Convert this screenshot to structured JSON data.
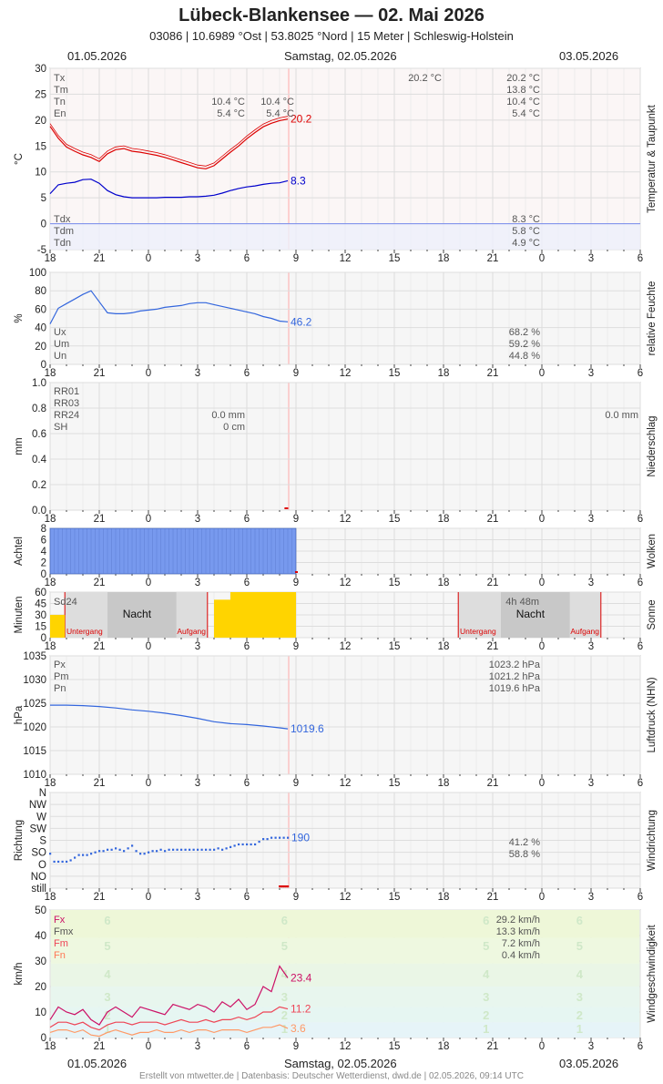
{
  "header": {
    "title": "Lübeck-Blankensee  —  02. Mai 2026",
    "subtitle": "03086  |  10.6989 °Ost  |  53.8025 °Nord  |  15 Meter  |  Schleswig-Holstein",
    "date_left": "01.05.2026",
    "date_center": "Samstag, 02.05.2026",
    "date_right": "03.05.2026"
  },
  "footer": "Erstellt von mtwetter.de | Datenbasis: Deutscher Wetterdienst, dwd.de | 02.05.2026, 09:14 UTC",
  "x_ticks": [
    "18",
    "21",
    "0",
    "3",
    "6",
    "9",
    "12",
    "15",
    "18",
    "21",
    "0",
    "3",
    "6"
  ],
  "chart_data": [
    {
      "type": "line",
      "ylabel": "°C",
      "side_label": "Temperatur & Taupunkt",
      "ylim": [
        -5,
        30
      ],
      "yticks": [
        "30",
        "25",
        "20",
        "15",
        "10",
        "5",
        "0",
        "-5"
      ],
      "x_unit": "hours since 01.05.2026 18:00",
      "stats_labels": [
        "Tx",
        "Tm",
        "Tn",
        "En"
      ],
      "stats_left_values": [
        "",
        "",
        "10.4 °C",
        "5.4 °C"
      ],
      "stats_mid_values": [
        "",
        "",
        "10.4 °C",
        "5.4 °C"
      ],
      "stats_day_values": [
        "20.2 °C"
      ],
      "stats_right_values": [
        "20.2 °C",
        "13.8 °C",
        "10.4 °C",
        "5.4 °C"
      ],
      "dew_labels": [
        "Tdx",
        "Tdm",
        "Tdn"
      ],
      "dew_values": [
        "8.3 °C",
        "5.8 °C",
        "4.9 °C"
      ],
      "series": [
        {
          "color": "#dd0000",
          "end_label": "20.2",
          "x": [
            0,
            0.5,
            1,
            1.5,
            2,
            2.5,
            3,
            3.5,
            4,
            4.5,
            5,
            5.5,
            6,
            6.5,
            7,
            7.5,
            8,
            8.5,
            9,
            9.5,
            10,
            10.5,
            11,
            11.5,
            12,
            12.5,
            13,
            13.5,
            14,
            14.5
          ],
          "y": [
            18.8,
            16.5,
            14.8,
            14.0,
            13.3,
            12.8,
            12.0,
            13.5,
            14.3,
            14.5,
            14.0,
            13.8,
            13.5,
            13.2,
            12.8,
            12.3,
            11.8,
            11.3,
            10.8,
            10.6,
            11.2,
            12.5,
            13.8,
            15.0,
            16.4,
            17.6,
            18.7,
            19.4,
            19.9,
            20.2
          ]
        },
        {
          "color": "#0000cc",
          "end_label": "8.3",
          "x": [
            0,
            0.5,
            1,
            1.5,
            2,
            2.5,
            3,
            3.5,
            4,
            4.5,
            5,
            5.5,
            6,
            6.5,
            7,
            7.5,
            8,
            8.5,
            9,
            9.5,
            10,
            10.5,
            11,
            11.5,
            12,
            12.5,
            13,
            13.5,
            14,
            14.5
          ],
          "y": [
            5.8,
            7.5,
            7.8,
            8.0,
            8.5,
            8.6,
            7.8,
            6.4,
            5.6,
            5.2,
            5.0,
            5.0,
            5.0,
            5.0,
            5.1,
            5.1,
            5.1,
            5.2,
            5.2,
            5.3,
            5.5,
            5.9,
            6.4,
            6.8,
            7.1,
            7.3,
            7.6,
            7.8,
            7.9,
            8.3
          ]
        }
      ]
    },
    {
      "type": "line",
      "ylabel": "%",
      "side_label": "relative Feuchte",
      "ylim": [
        0,
        100
      ],
      "yticks": [
        "100",
        "80",
        "60",
        "40",
        "20",
        "0"
      ],
      "stats_labels": [
        "Ux",
        "Um",
        "Un"
      ],
      "stats_right_values": [
        "68.2 %",
        "59.2 %",
        "44.8 %"
      ],
      "series": [
        {
          "color": "#3366dd",
          "end_label": "46.2",
          "x": [
            0,
            0.5,
            1,
            1.5,
            2,
            2.5,
            3,
            3.5,
            4,
            4.5,
            5,
            5.5,
            6,
            6.5,
            7,
            7.5,
            8,
            8.5,
            9,
            9.5,
            10,
            10.5,
            11,
            11.5,
            12,
            12.5,
            13,
            13.5,
            14,
            14.5
          ],
          "y": [
            44,
            61,
            66,
            71,
            76,
            80,
            68,
            56,
            55,
            55,
            56,
            58,
            59,
            60,
            62,
            63,
            64,
            66,
            67,
            67,
            65,
            63,
            61,
            59,
            57,
            55,
            52,
            50,
            47,
            46.2
          ]
        }
      ]
    },
    {
      "type": "bar",
      "ylabel": "mm",
      "side_label": "Niederschlag",
      "ylim": [
        0,
        1.0
      ],
      "yticks": [
        "1.0",
        "0.8",
        "0.6",
        "0.4",
        "0.2",
        "0.0"
      ],
      "stats_labels": [
        "RR01",
        "RR03",
        "RR24",
        "SH"
      ],
      "stats_mid_values": [
        "",
        "",
        "0.0 mm",
        "0 cm"
      ],
      "stats_right_values": [
        "",
        "",
        "0.0 mm",
        ""
      ],
      "values": []
    },
    {
      "type": "bar",
      "ylabel": "Achtel",
      "side_label": "Wolken",
      "ylim": [
        0,
        8
      ],
      "yticks": [
        "8",
        "6",
        "4",
        "2",
        "0"
      ],
      "bar_color": "#7799ee",
      "x_start": 0,
      "x_end": 15,
      "value": 8
    },
    {
      "type": "bar",
      "ylabel": "Minuten",
      "side_label": "Sonne",
      "ylim": [
        0,
        60
      ],
      "yticks": [
        "60",
        "45",
        "30",
        "15",
        "0"
      ],
      "sd_label": "Sd24",
      "sd_value": "4h 48m",
      "night_label": "Nacht",
      "sunset_label": "Untergang",
      "sunrise_label": "Aufgang",
      "bar_color": "#ffd400",
      "bars": [
        {
          "x0": 0,
          "x1": 0.9,
          "v": 30
        },
        {
          "x0": 10,
          "x1": 11,
          "v": 50
        },
        {
          "x0": 11,
          "x1": 15,
          "v": 60
        }
      ]
    },
    {
      "type": "line",
      "ylabel": "hPa",
      "side_label": "Luftdruck (NHN)",
      "ylim": [
        1010,
        1035
      ],
      "yticks": [
        "1035",
        "1030",
        "1025",
        "1020",
        "1015",
        "1010"
      ],
      "stats_labels": [
        "Px",
        "Pm",
        "Pn"
      ],
      "stats_right_values": [
        "1023.2 hPa",
        "1021.2 hPa",
        "1019.6 hPa"
      ],
      "series": [
        {
          "color": "#3366dd",
          "end_label": "1019.6",
          "x": [
            0,
            1,
            2,
            3,
            4,
            5,
            6,
            7,
            8,
            9,
            10,
            11,
            12,
            13,
            14,
            14.5
          ],
          "y": [
            1024.6,
            1024.6,
            1024.5,
            1024.3,
            1024.0,
            1023.6,
            1023.3,
            1022.9,
            1022.4,
            1021.8,
            1021.1,
            1020.7,
            1020.5,
            1020.2,
            1019.8,
            1019.6
          ]
        }
      ]
    },
    {
      "type": "scatter",
      "ylabel": "Richtung",
      "side_label": "Windrichtung",
      "yticks": [
        "N",
        "NW",
        "W",
        "SW",
        "S",
        "SO",
        "O",
        "NO",
        "still"
      ],
      "stats_right_values": [
        "41.2 %",
        "58.8 %"
      ],
      "series": [
        {
          "color": "#3366dd",
          "end_label": "190",
          "x": [
            0,
            0.25,
            0.5,
            0.75,
            1,
            1.25,
            1.5,
            1.75,
            2,
            2.25,
            2.5,
            2.75,
            3,
            3.25,
            3.5,
            3.75,
            4,
            4.25,
            4.5,
            4.75,
            5,
            5.25,
            5.5,
            5.75,
            6,
            6.25,
            6.5,
            6.75,
            7,
            7.25,
            7.5,
            7.75,
            8,
            8.25,
            8.5,
            8.75,
            9,
            9.25,
            9.5,
            9.75,
            10,
            10.25,
            10.5,
            10.75,
            11,
            11.25,
            11.5,
            11.75,
            12,
            12.25,
            12.5,
            12.75,
            13,
            13.25,
            13.5,
            13.75,
            14,
            14.25,
            14.5
          ],
          "y": [
            130,
            100,
            100,
            100,
            100,
            105,
            115,
            125,
            125,
            125,
            130,
            135,
            140,
            140,
            145,
            145,
            150,
            145,
            140,
            150,
            160,
            140,
            130,
            130,
            135,
            140,
            140,
            145,
            140,
            145,
            145,
            145,
            145,
            145,
            145,
            145,
            145,
            145,
            145,
            145,
            145,
            150,
            145,
            150,
            155,
            160,
            165,
            165,
            165,
            165,
            165,
            175,
            185,
            185,
            190,
            190,
            190,
            190,
            190
          ]
        },
        {
          "color": "#dd0000",
          "x": [
            14.0,
            14.1,
            14.2,
            14.3,
            14.4,
            14.5
          ],
          "y": [
            -1,
            -1,
            -1,
            -1,
            -1,
            -1
          ]
        }
      ]
    },
    {
      "type": "line",
      "ylabel": "km/h",
      "side_label": "Windgeschwindigkeit",
      "ylim": [
        0,
        50
      ],
      "yticks": [
        "50",
        "40",
        "30",
        "20",
        "10",
        "0"
      ],
      "stats_labels": [
        "Fx",
        "Fmx",
        "Fm",
        "Fn"
      ],
      "stats_right_values": [
        "29.2 km/h",
        "13.3 km/h",
        "7.2 km/h",
        "0.4 km/h"
      ],
      "beaufort_labels": [
        "6",
        "5",
        "4",
        "3",
        "2",
        "1"
      ],
      "series": [
        {
          "color": "#cc1166",
          "end_label": "23.4",
          "x": [
            0,
            0.5,
            1,
            1.5,
            2,
            2.5,
            3,
            3.5,
            4,
            4.5,
            5,
            5.5,
            6,
            6.5,
            7,
            7.5,
            8,
            8.5,
            9,
            9.5,
            10,
            10.5,
            11,
            11.5,
            12,
            12.5,
            13,
            13.5,
            14,
            14.5
          ],
          "y": [
            7,
            12,
            10,
            9,
            11,
            7,
            5,
            10,
            12,
            10,
            8,
            12,
            11,
            10,
            9,
            13,
            12,
            11,
            13,
            12,
            10,
            14,
            12,
            15,
            11,
            13,
            20,
            18,
            28,
            23.4
          ]
        },
        {
          "color": "#ee4455",
          "end_label": "11.2",
          "x": [
            0,
            0.5,
            1,
            1.5,
            2,
            2.5,
            3,
            3.5,
            4,
            4.5,
            5,
            5.5,
            6,
            6.5,
            7,
            7.5,
            8,
            8.5,
            9,
            9.5,
            10,
            10.5,
            11,
            11.5,
            12,
            12.5,
            13,
            13.5,
            14,
            14.5
          ],
          "y": [
            4,
            6,
            6,
            5,
            6,
            4,
            3,
            5,
            6,
            6,
            5,
            6,
            6,
            6,
            5,
            6,
            7,
            6,
            6,
            7,
            6,
            7,
            7,
            8,
            7,
            8,
            10,
            10,
            12,
            11.2
          ]
        },
        {
          "color": "#ff9966",
          "end_label": "3.6",
          "x": [
            0,
            0.5,
            1,
            1.5,
            2,
            2.5,
            3,
            3.5,
            4,
            4.5,
            5,
            5.5,
            6,
            6.5,
            7,
            7.5,
            8,
            8.5,
            9,
            9.5,
            10,
            10.5,
            11,
            11.5,
            12,
            12.5,
            13,
            13.5,
            14,
            14.5
          ],
          "y": [
            2,
            3,
            3,
            2,
            3,
            1,
            0.5,
            2,
            3,
            2,
            1,
            2,
            2,
            3,
            2,
            2,
            3,
            2,
            3,
            3,
            2,
            3,
            3,
            3,
            2,
            3,
            4,
            4,
            5,
            3.6
          ]
        }
      ]
    }
  ]
}
